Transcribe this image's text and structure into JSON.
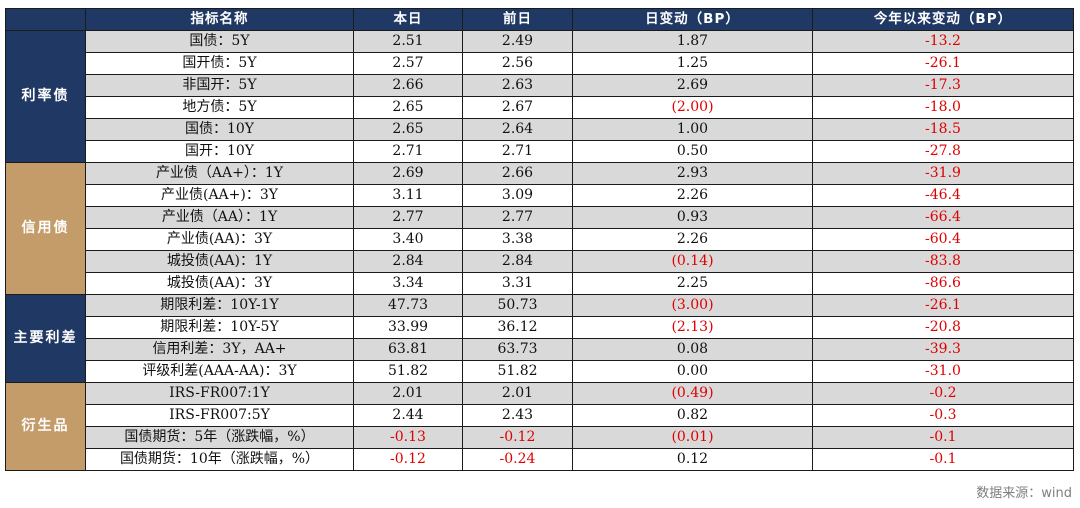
{
  "header": {
    "col_category": "",
    "col_name": "指标名称",
    "col_today": "本日",
    "col_prev": "前日",
    "col_daily": "日变动（BP）",
    "col_ytd": "今年以来变动（BP）"
  },
  "colors": {
    "header_bg": "#1f3864",
    "cat_rate": "#1f3864",
    "cat_credit": "#c39c6a",
    "cat_spread": "#1f3864",
    "cat_deriv": "#c39c6a",
    "shade": "#d9d9d9",
    "negative": "#e00000"
  },
  "groups": [
    {
      "label": "利率债",
      "color": "#1f3864",
      "rows": [
        {
          "name": "国债：5Y",
          "today": "2.51",
          "prev": "2.49",
          "daily": "1.87",
          "ytd": "-13.2"
        },
        {
          "name": "国开债：5Y",
          "today": "2.57",
          "prev": "2.56",
          "daily": "1.25",
          "ytd": "-26.1"
        },
        {
          "name": "非国开：5Y",
          "today": "2.66",
          "prev": "2.63",
          "daily": "2.69",
          "ytd": "-17.3"
        },
        {
          "name": "地方债：5Y",
          "today": "2.65",
          "prev": "2.67",
          "daily": "(2.00)",
          "ytd": "-18.0"
        },
        {
          "name": "国债：10Y",
          "today": "2.65",
          "prev": "2.64",
          "daily": "1.00",
          "ytd": "-18.5"
        },
        {
          "name": "国开：10Y",
          "today": "2.71",
          "prev": "2.71",
          "daily": "0.50",
          "ytd": "-27.8"
        }
      ]
    },
    {
      "label": "信用债",
      "color": "#c39c6a",
      "rows": [
        {
          "name": "产业债（AA+）：1Y",
          "today": "2.69",
          "prev": "2.66",
          "daily": "2.93",
          "ytd": "-31.9"
        },
        {
          "name": "产业债(AA+)：3Y",
          "today": "3.11",
          "prev": "3.09",
          "daily": "2.26",
          "ytd": "-46.4"
        },
        {
          "name": "产业债（AA）：1Y",
          "today": "2.77",
          "prev": "2.77",
          "daily": "0.93",
          "ytd": "-66.4"
        },
        {
          "name": "产业债(AA)：3Y",
          "today": "3.40",
          "prev": "3.38",
          "daily": "2.26",
          "ytd": "-60.4"
        },
        {
          "name": "城投债(AA)：1Y",
          "today": "2.84",
          "prev": "2.84",
          "daily": "(0.14)",
          "ytd": "-83.8"
        },
        {
          "name": "城投债(AA)：3Y",
          "today": "3.34",
          "prev": "3.31",
          "daily": "2.25",
          "ytd": "-86.6"
        }
      ]
    },
    {
      "label": "主要利差",
      "color": "#1f3864",
      "rows": [
        {
          "name": "期限利差：10Y-1Y",
          "today": "47.73",
          "prev": "50.73",
          "daily": "(3.00)",
          "ytd": "-26.1"
        },
        {
          "name": "期限利差：10Y-5Y",
          "today": "33.99",
          "prev": "36.12",
          "daily": "(2.13)",
          "ytd": "-20.8"
        },
        {
          "name": "信用利差：3Y，AA+",
          "today": "63.81",
          "prev": "63.73",
          "daily": "0.08",
          "ytd": "-39.3"
        },
        {
          "name": "评级利差(AAA-AA)：3Y",
          "today": "51.82",
          "prev": "51.82",
          "daily": "0.00",
          "ytd": "-31.0"
        }
      ]
    },
    {
      "label": "衍生品",
      "color": "#c39c6a",
      "rows": [
        {
          "name": "IRS-FR007:1Y",
          "today": "2.01",
          "prev": "2.01",
          "daily": "(0.49)",
          "ytd": "-0.2"
        },
        {
          "name": "IRS-FR007:5Y",
          "today": "2.44",
          "prev": "2.43",
          "daily": "0.82",
          "ytd": "-0.3"
        },
        {
          "name": "国债期货：5年（涨跌幅，%）",
          "today": "-0.13",
          "prev": "-0.12",
          "daily": "(0.01)",
          "ytd": "-0.1"
        },
        {
          "name": "国债期货：10年（涨跌幅，%）",
          "today": "-0.12",
          "prev": "-0.24",
          "daily": "0.12",
          "ytd": "-0.1"
        }
      ]
    }
  ],
  "footnote": "数据来源：wind"
}
